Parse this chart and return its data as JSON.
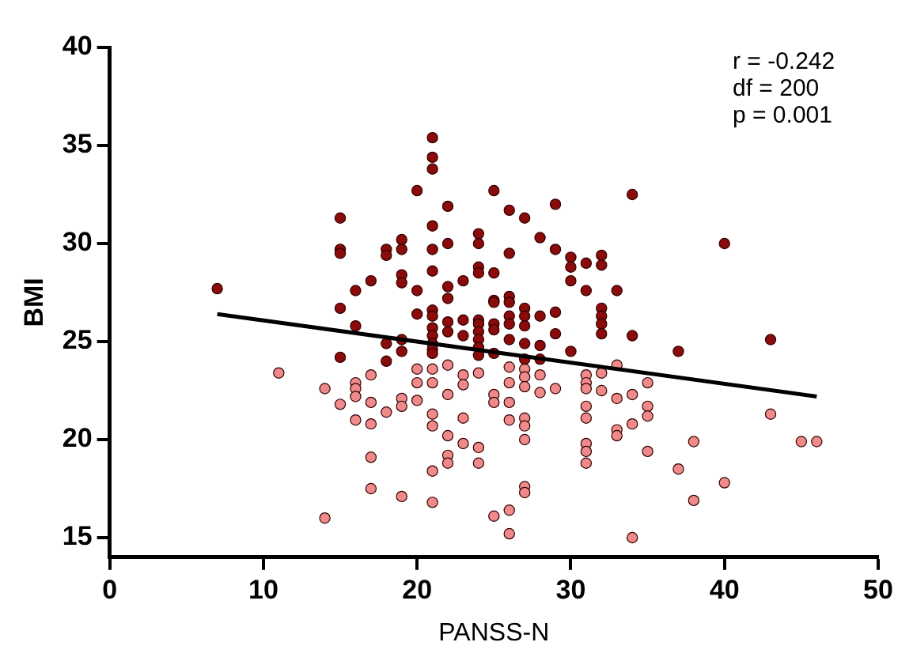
{
  "chart_data": {
    "type": "scatter",
    "xlabel": "PANSS-N",
    "ylabel": "BMI",
    "xlim": [
      0,
      50
    ],
    "xticks": [
      0,
      10,
      20,
      30,
      40,
      50
    ],
    "ylim": [
      14,
      40
    ],
    "yticks": [
      15,
      20,
      25,
      30,
      35,
      40
    ],
    "grid": false,
    "legend": false,
    "marker": "circle",
    "annotations": [
      "r = -0.242",
      "df = 200",
      "p = 0.001"
    ],
    "series": [
      {
        "color": "#8b0a0a",
        "x": [
          7,
          15,
          15,
          15,
          16,
          17,
          18,
          18,
          19,
          19,
          19,
          19,
          20,
          20,
          21,
          21,
          21,
          21,
          21,
          21,
          22,
          22,
          22,
          22,
          23,
          24,
          24,
          24,
          24,
          25,
          25,
          25,
          26,
          27,
          29,
          34,
          28,
          26,
          29,
          30,
          30,
          30,
          31,
          32,
          32,
          31,
          33,
          40,
          26,
          15,
          16,
          18,
          18,
          19,
          19,
          20,
          21,
          21,
          21,
          21,
          21,
          21,
          21,
          22,
          22,
          23,
          23,
          24,
          24,
          24,
          24,
          24,
          24,
          25,
          25,
          25,
          25,
          15,
          26,
          26,
          26,
          26,
          27,
          27,
          27,
          27,
          27,
          28,
          28,
          28,
          29,
          29,
          30,
          32,
          32,
          32,
          32,
          34,
          37,
          43
        ],
        "values": [
          27.7,
          31.3,
          29.7,
          29.5,
          27.6,
          28.1,
          29.7,
          29.4,
          30.2,
          29.7,
          28.4,
          28.0,
          32.7,
          27.6,
          35.4,
          34.4,
          33.8,
          30.9,
          29.7,
          28.6,
          31.9,
          30.0,
          27.8,
          27.2,
          28.1,
          30.5,
          30.0,
          28.8,
          28.5,
          32.7,
          28.5,
          27.1,
          31.7,
          31.3,
          32.0,
          32.5,
          30.3,
          29.5,
          29.7,
          29.3,
          28.8,
          28.1,
          29.0,
          29.4,
          28.9,
          27.6,
          27.6,
          30.0,
          27.3,
          26.7,
          25.8,
          24.9,
          24.0,
          25.1,
          24.5,
          26.4,
          26.6,
          26.3,
          25.7,
          25.3,
          24.9,
          24.6,
          24.4,
          26.0,
          25.5,
          26.1,
          25.3,
          26.1,
          25.9,
          25.5,
          25.1,
          24.7,
          24.3,
          27.0,
          25.9,
          25.6,
          24.4,
          24.2,
          27.0,
          26.3,
          25.9,
          25.1,
          26.7,
          26.3,
          25.8,
          24.9,
          24.1,
          26.3,
          24.8,
          24.1,
          26.5,
          25.4,
          24.5,
          26.7,
          26.3,
          25.9,
          25.4,
          25.3,
          24.5,
          25.1
        ]
      },
      {
        "color": "#f08a8a",
        "x": [
          11,
          14,
          15,
          16,
          16,
          16,
          16,
          17,
          17,
          17,
          17,
          17,
          18,
          19,
          19,
          19,
          20,
          20,
          20,
          21,
          21,
          21,
          21,
          21,
          21,
          22,
          22,
          22,
          22,
          22,
          23,
          23,
          23,
          23,
          24,
          24,
          24,
          25,
          25,
          25,
          14,
          26,
          26,
          26,
          26,
          26,
          26,
          27,
          27,
          27,
          27,
          27,
          27,
          27,
          27,
          28,
          28,
          29,
          31,
          31,
          31,
          31,
          31,
          31,
          31,
          31,
          32,
          32,
          33,
          33,
          33,
          33,
          34,
          34,
          34,
          35,
          35,
          35,
          35,
          37,
          38,
          38,
          40,
          43,
          45,
          46
        ],
        "values": [
          23.4,
          22.6,
          21.8,
          22.9,
          22.6,
          22.2,
          21.0,
          23.3,
          21.9,
          20.8,
          19.1,
          17.5,
          21.4,
          22.1,
          21.7,
          17.1,
          23.6,
          22.9,
          22.0,
          23.6,
          22.9,
          21.3,
          20.7,
          18.4,
          16.8,
          23.8,
          22.3,
          20.2,
          19.2,
          18.8,
          23.3,
          22.8,
          21.1,
          19.8,
          23.4,
          19.6,
          18.8,
          22.3,
          21.9,
          16.1,
          16.0,
          23.7,
          22.9,
          21.9,
          21.0,
          16.4,
          15.2,
          23.6,
          23.2,
          22.7,
          21.1,
          20.7,
          20.0,
          17.6,
          17.3,
          23.3,
          22.4,
          22.6,
          23.3,
          22.9,
          22.6,
          21.7,
          21.1,
          19.8,
          19.4,
          18.8,
          23.4,
          22.5,
          23.8,
          22.1,
          20.5,
          20.2,
          22.3,
          20.8,
          15.0,
          22.9,
          21.7,
          21.2,
          19.4,
          18.5,
          19.9,
          16.9,
          17.8,
          21.3,
          19.9,
          19.9
        ]
      },
      {
        "type": "line",
        "color": "#000000",
        "x": [
          7,
          46
        ],
        "values": [
          26.4,
          22.2
        ],
        "marker": "none",
        "line_style": "solid"
      }
    ]
  }
}
